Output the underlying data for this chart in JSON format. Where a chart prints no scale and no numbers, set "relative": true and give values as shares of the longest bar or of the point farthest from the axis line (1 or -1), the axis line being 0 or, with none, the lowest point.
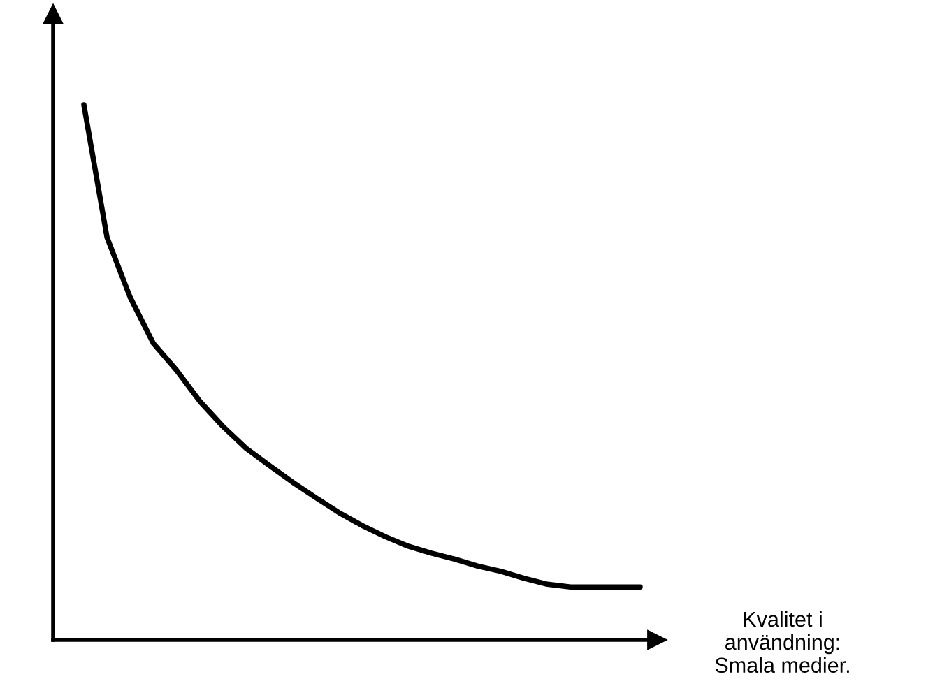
{
  "chart_data": {
    "type": "line",
    "relative": true,
    "xlabel": "Kvalitet i\nanvändning:\nSmala medier.",
    "categories": [
      null,
      null,
      null,
      null,
      null,
      null,
      null,
      null,
      null,
      null,
      null,
      null,
      null,
      null,
      null,
      null,
      null,
      null,
      null,
      null,
      null,
      null,
      null,
      null,
      null
    ],
    "series": [
      {
        "color": "#000000",
        "values": [
          1.0,
          0.752,
          0.64,
          0.554,
          0.504,
          0.446,
          0.399,
          0.358,
          0.326,
          0.295,
          0.266,
          0.238,
          0.214,
          0.193,
          0.175,
          0.162,
          0.151,
          0.138,
          0.128,
          0.115,
          0.104,
          0.099,
          0.099,
          0.099,
          0.099
        ]
      }
    ],
    "marker": "none",
    "line_style": "solid",
    "tick_labels": false
  }
}
